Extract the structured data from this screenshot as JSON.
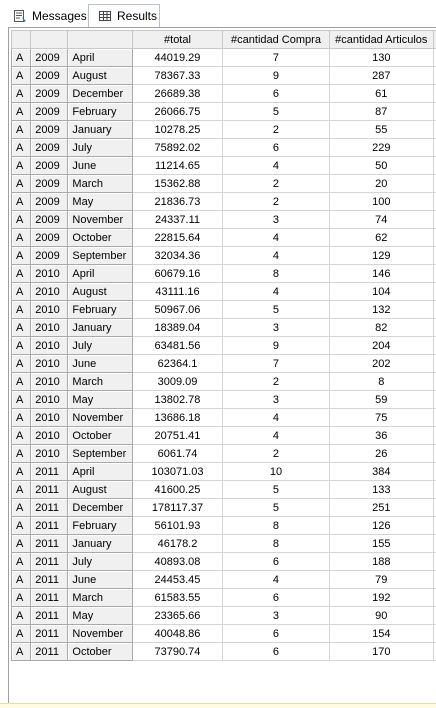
{
  "tabs": {
    "messages_label": "Messages",
    "results_label": "Results"
  },
  "columns": [
    "",
    "",
    "",
    "#total",
    "#cantidad Compra",
    "#cantidad Articulos"
  ],
  "rows": [
    [
      "A",
      "2009",
      "April",
      "44019.29",
      "7",
      "130"
    ],
    [
      "A",
      "2009",
      "August",
      "78367.33",
      "9",
      "287"
    ],
    [
      "A",
      "2009",
      "December",
      "26689.38",
      "6",
      "61"
    ],
    [
      "A",
      "2009",
      "February",
      "26066.75",
      "5",
      "87"
    ],
    [
      "A",
      "2009",
      "January",
      "10278.25",
      "2",
      "55"
    ],
    [
      "A",
      "2009",
      "July",
      "75892.02",
      "6",
      "229"
    ],
    [
      "A",
      "2009",
      "June",
      "11214.65",
      "4",
      "50"
    ],
    [
      "A",
      "2009",
      "March",
      "15362.88",
      "2",
      "20"
    ],
    [
      "A",
      "2009",
      "May",
      "21836.73",
      "2",
      "100"
    ],
    [
      "A",
      "2009",
      "November",
      "24337.11",
      "3",
      "74"
    ],
    [
      "A",
      "2009",
      "October",
      "22815.64",
      "4",
      "62"
    ],
    [
      "A",
      "2009",
      "September",
      "32034.36",
      "4",
      "129"
    ],
    [
      "A",
      "2010",
      "April",
      "60679.16",
      "8",
      "146"
    ],
    [
      "A",
      "2010",
      "August",
      "43111.16",
      "4",
      "104"
    ],
    [
      "A",
      "2010",
      "February",
      "50967.06",
      "5",
      "132"
    ],
    [
      "A",
      "2010",
      "January",
      "18389.04",
      "3",
      "82"
    ],
    [
      "A",
      "2010",
      "July",
      "63481.56",
      "9",
      "204"
    ],
    [
      "A",
      "2010",
      "June",
      "62364.1",
      "7",
      "202"
    ],
    [
      "A",
      "2010",
      "March",
      "3009.09",
      "2",
      "8"
    ],
    [
      "A",
      "2010",
      "May",
      "13802.78",
      "3",
      "59"
    ],
    [
      "A",
      "2010",
      "November",
      "13686.18",
      "4",
      "75"
    ],
    [
      "A",
      "2010",
      "October",
      "20751.41",
      "4",
      "36"
    ],
    [
      "A",
      "2010",
      "September",
      "6061.74",
      "2",
      "26"
    ],
    [
      "A",
      "2011",
      "April",
      "103071.03",
      "10",
      "384"
    ],
    [
      "A",
      "2011",
      "August",
      "41600.25",
      "5",
      "133"
    ],
    [
      "A",
      "2011",
      "December",
      "178117.37",
      "5",
      "251"
    ],
    [
      "A",
      "2011",
      "February",
      "56101.93",
      "8",
      "126"
    ],
    [
      "A",
      "2011",
      "January",
      "46178.2",
      "8",
      "155"
    ],
    [
      "A",
      "2011",
      "July",
      "40893.08",
      "6",
      "188"
    ],
    [
      "A",
      "2011",
      "June",
      "24453.45",
      "4",
      "79"
    ],
    [
      "A",
      "2011",
      "March",
      "61583.55",
      "6",
      "192"
    ],
    [
      "A",
      "2011",
      "May",
      "23365.66",
      "3",
      "90"
    ],
    [
      "A",
      "2011",
      "November",
      "40048.86",
      "6",
      "154"
    ],
    [
      "A",
      "2011",
      "October",
      "73790.74",
      "6",
      "170"
    ]
  ]
}
